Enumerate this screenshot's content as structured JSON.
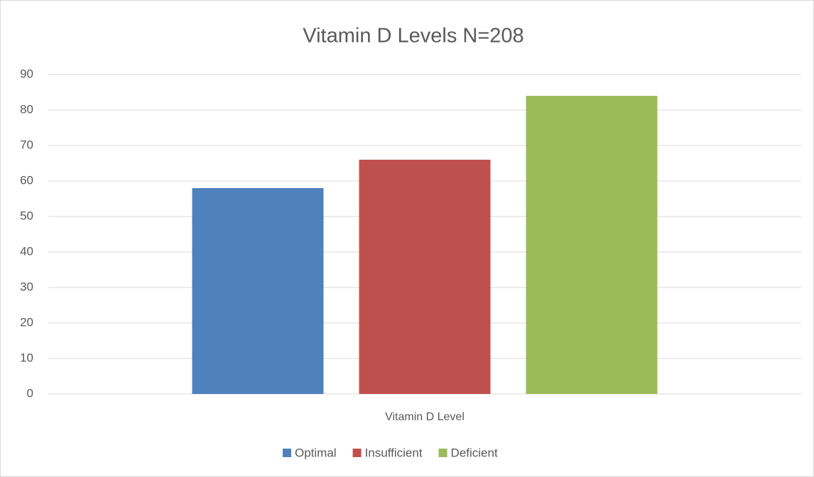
{
  "chart_data": {
    "type": "bar",
    "title": "Vitamin D Levels N=208",
    "x_label": "Vitamin D Level",
    "categories": [
      "Vitamin D Level"
    ],
    "series": [
      {
        "name": "Optimal",
        "color": "#4f81bd",
        "values": [
          58
        ]
      },
      {
        "name": "Insufficient",
        "color": "#c0504d",
        "values": [
          66
        ]
      },
      {
        "name": "Deficient",
        "color": "#9bbb59",
        "values": [
          84
        ]
      }
    ],
    "ylim": [
      0,
      90
    ],
    "yticks": [
      0,
      10,
      20,
      30,
      40,
      50,
      60,
      70,
      80,
      90
    ],
    "grid": true,
    "legend": "bottom"
  }
}
